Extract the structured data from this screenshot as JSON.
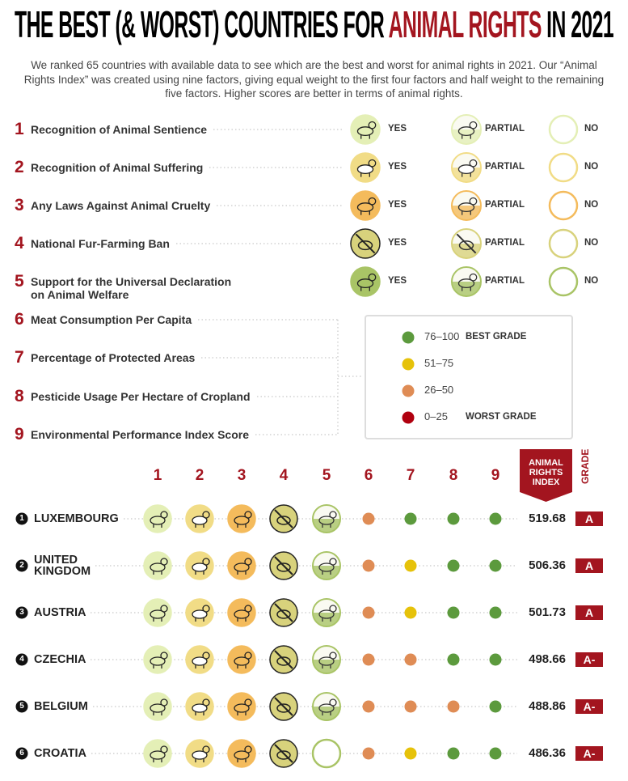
{
  "title": {
    "lead": "THE BEST (& WORST) COUNTRIES FOR",
    "highlight": "ANIMAL RIGHTS",
    "tail": "IN 2021"
  },
  "intro": "We ranked 65 countries with available data to see which are the best and worst for animal rights in 2021. Our “Animal Rights Index” was created using nine factors, giving equal weight to the first four factors and half weight to the remaining five factors. Higher scores are better in terms of animal rights.",
  "factors": [
    {
      "number": "1",
      "label": "Recognition of Animal Sentience",
      "color": "#e4efb6"
    },
    {
      "number": "2",
      "label": "Recognition of Animal Suffering",
      "color": "#f1dc86"
    },
    {
      "number": "3",
      "label": "Any Laws Against Animal Cruelty",
      "color": "#f4bb5c"
    },
    {
      "number": "4",
      "label": "National Fur-Farming Ban",
      "color": "#d8d27c"
    },
    {
      "number": "5",
      "label": "Support for the Universal Declaration\non Animal Welfare",
      "color": "#a9c466"
    },
    {
      "number": "6",
      "label": "Meat Consumption Per Capita"
    },
    {
      "number": "7",
      "label": "Percentage of Protected Areas"
    },
    {
      "number": "8",
      "label": "Pesticide Usage Per Hectare of Cropland"
    },
    {
      "number": "9",
      "label": "Environmental Performance Index Score"
    }
  ],
  "status_labels": {
    "yes": "YES",
    "partial": "PARTIAL",
    "no": "NO"
  },
  "legend": [
    {
      "range": "76–100",
      "note": "BEST GRADE",
      "color": "#5c9a3d"
    },
    {
      "range": "51–75",
      "color": "#e6c20a"
    },
    {
      "range": "26–50",
      "color": "#df8c55"
    },
    {
      "range": "0–25",
      "note": "WORST GRADE",
      "color": "#b0000f"
    }
  ],
  "table": {
    "columns": [
      "1",
      "2",
      "3",
      "4",
      "5",
      "6",
      "7",
      "8",
      "9"
    ],
    "index_header": "ANIMAL RIGHTS INDEX",
    "grade_header": "GRADE",
    "rows": [
      {
        "rank": "1",
        "country": "LUXEMBOURG",
        "icons": [
          "yes",
          "yes",
          "yes",
          "yes",
          "partial"
        ],
        "dots": [
          "26–50",
          "76–100",
          "76–100",
          "76–100"
        ],
        "index": "519.68",
        "grade": "A"
      },
      {
        "rank": "2",
        "country": "UNITED\nKINGDOM",
        "icons": [
          "yes",
          "yes",
          "yes",
          "yes",
          "partial"
        ],
        "dots": [
          "26–50",
          "51–75",
          "76–100",
          "76–100"
        ],
        "index": "506.36",
        "grade": "A"
      },
      {
        "rank": "3",
        "country": "AUSTRIA",
        "icons": [
          "yes",
          "yes",
          "yes",
          "yes",
          "partial"
        ],
        "dots": [
          "26–50",
          "51–75",
          "76–100",
          "76–100"
        ],
        "index": "501.73",
        "grade": "A"
      },
      {
        "rank": "4",
        "country": "CZECHIA",
        "icons": [
          "yes",
          "yes",
          "yes",
          "yes",
          "partial"
        ],
        "dots": [
          "26–50",
          "26–50",
          "76–100",
          "76–100"
        ],
        "index": "498.66",
        "grade": "A-"
      },
      {
        "rank": "5",
        "country": "BELGIUM",
        "icons": [
          "yes",
          "yes",
          "yes",
          "yes",
          "partial"
        ],
        "dots": [
          "26–50",
          "26–50",
          "26–50",
          "76–100"
        ],
        "index": "488.86",
        "grade": "A-"
      },
      {
        "rank": "6",
        "country": "CROATIA",
        "icons": [
          "yes",
          "yes",
          "yes",
          "yes",
          "no"
        ],
        "dots": [
          "26–50",
          "51–75",
          "76–100",
          "76–100"
        ],
        "index": "486.36",
        "grade": "A-"
      }
    ]
  }
}
